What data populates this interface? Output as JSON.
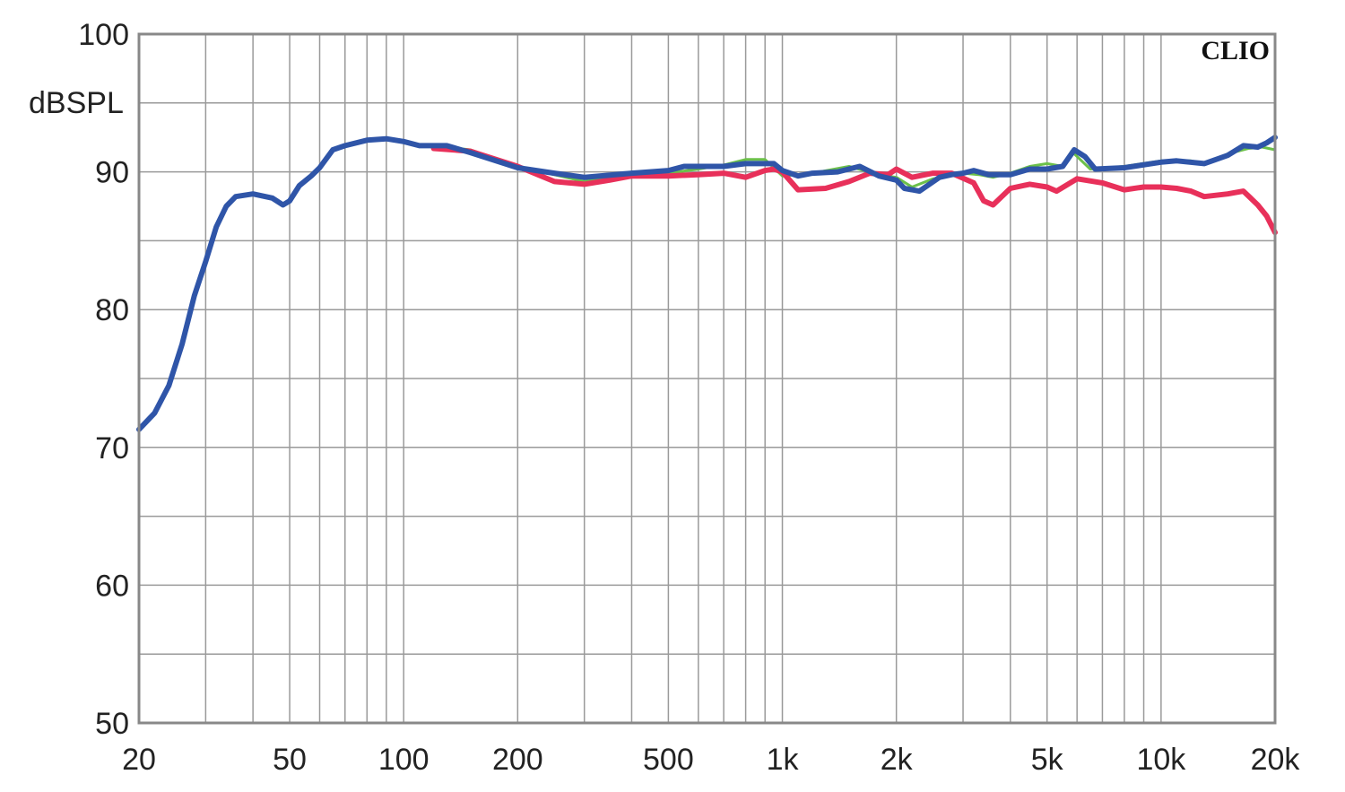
{
  "brand": "CLIO",
  "chart_data": {
    "type": "line",
    "title": "",
    "xlabel": "",
    "ylabel": "dBSPL",
    "x_scale": "log",
    "xlim": [
      20,
      20000
    ],
    "ylim": [
      50,
      100
    ],
    "grid": true,
    "x_ticks": [
      {
        "value": 20,
        "label": "20"
      },
      {
        "value": 50,
        "label": "50"
      },
      {
        "value": 100,
        "label": "100"
      },
      {
        "value": 200,
        "label": "200"
      },
      {
        "value": 500,
        "label": "500"
      },
      {
        "value": 1000,
        "label": "1k"
      },
      {
        "value": 2000,
        "label": "2k"
      },
      {
        "value": 5000,
        "label": "5k"
      },
      {
        "value": 10000,
        "label": "10k"
      },
      {
        "value": 20000,
        "label": "20k"
      }
    ],
    "y_ticks": [
      {
        "value": 100,
        "label": "100"
      },
      {
        "value": 90,
        "label": "90"
      },
      {
        "value": 80,
        "label": "80"
      },
      {
        "value": 70,
        "label": "70"
      },
      {
        "value": 60,
        "label": "60"
      },
      {
        "value": 50,
        "label": "50"
      }
    ],
    "series": [
      {
        "color": "#6cc04a",
        "points": [
          [
            120,
            91.9
          ],
          [
            150,
            91.6
          ],
          [
            200,
            90.4
          ],
          [
            300,
            89.3
          ],
          [
            400,
            89.8
          ],
          [
            500,
            89.9
          ],
          [
            600,
            90.2
          ],
          [
            700,
            90.5
          ],
          [
            800,
            90.9
          ],
          [
            900,
            90.9
          ],
          [
            1000,
            89.7
          ],
          [
            1200,
            89.9
          ],
          [
            1500,
            90.4
          ],
          [
            1800,
            89.8
          ],
          [
            2000,
            89.6
          ],
          [
            2200,
            88.9
          ],
          [
            2500,
            89.5
          ],
          [
            3000,
            89.9
          ],
          [
            3300,
            89.8
          ],
          [
            3600,
            89.6
          ],
          [
            4000,
            89.9
          ],
          [
            4500,
            90.4
          ],
          [
            5000,
            90.6
          ],
          [
            5500,
            90.4
          ],
          [
            5800,
            91.5
          ],
          [
            6500,
            90.2
          ],
          [
            8000,
            90.4
          ],
          [
            10000,
            90.8
          ],
          [
            12000,
            90.8
          ],
          [
            13000,
            90.6
          ],
          [
            15000,
            91.3
          ],
          [
            17000,
            91.7
          ],
          [
            18500,
            91.8
          ],
          [
            20000,
            91.6
          ]
        ]
      },
      {
        "color": "#e8305a",
        "points": [
          [
            120,
            91.7
          ],
          [
            150,
            91.5
          ],
          [
            200,
            90.4
          ],
          [
            250,
            89.3
          ],
          [
            300,
            89.1
          ],
          [
            350,
            89.4
          ],
          [
            400,
            89.7
          ],
          [
            500,
            89.7
          ],
          [
            600,
            89.8
          ],
          [
            700,
            89.9
          ],
          [
            800,
            89.6
          ],
          [
            900,
            90.1
          ],
          [
            950,
            90.2
          ],
          [
            1000,
            90.0
          ],
          [
            1100,
            88.7
          ],
          [
            1300,
            88.8
          ],
          [
            1500,
            89.3
          ],
          [
            1700,
            89.9
          ],
          [
            1900,
            89.8
          ],
          [
            2000,
            90.2
          ],
          [
            2200,
            89.6
          ],
          [
            2500,
            89.9
          ],
          [
            2800,
            89.9
          ],
          [
            3200,
            89.2
          ],
          [
            3400,
            87.9
          ],
          [
            3600,
            87.6
          ],
          [
            4000,
            88.8
          ],
          [
            4500,
            89.1
          ],
          [
            5000,
            88.9
          ],
          [
            5300,
            88.6
          ],
          [
            6000,
            89.5
          ],
          [
            7000,
            89.2
          ],
          [
            8000,
            88.7
          ],
          [
            9000,
            88.9
          ],
          [
            10000,
            88.9
          ],
          [
            11000,
            88.8
          ],
          [
            12000,
            88.6
          ],
          [
            13000,
            88.2
          ],
          [
            15000,
            88.4
          ],
          [
            16500,
            88.6
          ],
          [
            18000,
            87.6
          ],
          [
            19000,
            86.8
          ],
          [
            20000,
            85.6
          ]
        ]
      },
      {
        "color": "#2f55a8",
        "points": [
          [
            20,
            71.3
          ],
          [
            22,
            72.5
          ],
          [
            24,
            74.5
          ],
          [
            26,
            77.5
          ],
          [
            28,
            81.0
          ],
          [
            30,
            83.5
          ],
          [
            32,
            86.0
          ],
          [
            34,
            87.5
          ],
          [
            36,
            88.2
          ],
          [
            40,
            88.4
          ],
          [
            45,
            88.1
          ],
          [
            48,
            87.6
          ],
          [
            50,
            87.9
          ],
          [
            53,
            89.0
          ],
          [
            57,
            89.7
          ],
          [
            60,
            90.3
          ],
          [
            65,
            91.6
          ],
          [
            70,
            91.9
          ],
          [
            80,
            92.3
          ],
          [
            90,
            92.4
          ],
          [
            100,
            92.2
          ],
          [
            110,
            91.9
          ],
          [
            130,
            91.9
          ],
          [
            150,
            91.4
          ],
          [
            200,
            90.3
          ],
          [
            250,
            89.9
          ],
          [
            300,
            89.6
          ],
          [
            400,
            89.9
          ],
          [
            500,
            90.1
          ],
          [
            550,
            90.4
          ],
          [
            600,
            90.4
          ],
          [
            700,
            90.4
          ],
          [
            800,
            90.6
          ],
          [
            900,
            90.6
          ],
          [
            950,
            90.6
          ],
          [
            1000,
            90.1
          ],
          [
            1100,
            89.7
          ],
          [
            1200,
            89.9
          ],
          [
            1400,
            90.0
          ],
          [
            1600,
            90.4
          ],
          [
            1800,
            89.7
          ],
          [
            2000,
            89.4
          ],
          [
            2100,
            88.8
          ],
          [
            2300,
            88.6
          ],
          [
            2600,
            89.6
          ],
          [
            2800,
            89.8
          ],
          [
            3000,
            89.9
          ],
          [
            3200,
            90.1
          ],
          [
            3500,
            89.8
          ],
          [
            4000,
            89.8
          ],
          [
            4500,
            90.2
          ],
          [
            5000,
            90.2
          ],
          [
            5500,
            90.4
          ],
          [
            5900,
            91.6
          ],
          [
            6300,
            91.1
          ],
          [
            6700,
            90.2
          ],
          [
            8000,
            90.3
          ],
          [
            10000,
            90.7
          ],
          [
            11000,
            90.8
          ],
          [
            13000,
            90.6
          ],
          [
            15000,
            91.2
          ],
          [
            16500,
            91.9
          ],
          [
            18000,
            91.8
          ],
          [
            19000,
            92.1
          ],
          [
            20000,
            92.5
          ]
        ]
      }
    ]
  }
}
